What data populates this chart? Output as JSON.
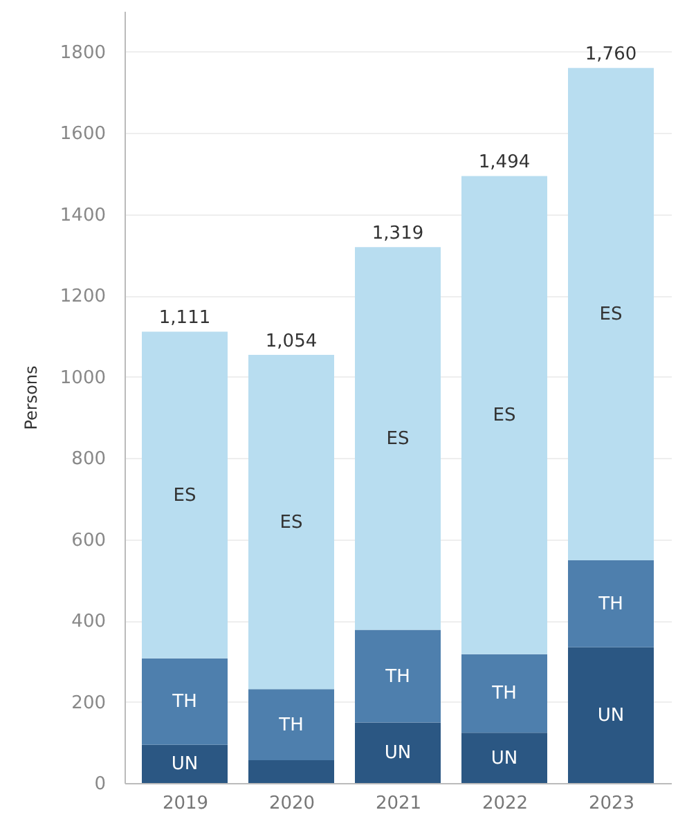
{
  "chart_data": {
    "type": "bar",
    "stacked": true,
    "ylabel": "Persons",
    "categories": [
      "2019",
      "2020",
      "2021",
      "2022",
      "2023"
    ],
    "series": [
      {
        "name": "UN",
        "color": "#2b5783",
        "values": [
          94,
          56,
          149,
          124,
          334
        ]
      },
      {
        "name": "TH",
        "color": "#4e7fad",
        "values": [
          213,
          175,
          228,
          193,
          214
        ]
      },
      {
        "name": "ES",
        "color": "#b8ddf0",
        "values": [
          804,
          823,
          942,
          1177,
          1212
        ]
      }
    ],
    "totals": [
      "1,111",
      "1,054",
      "1,319",
      "1,494",
      "1,760"
    ],
    "ylim": [
      0,
      1900
    ],
    "yticks": [
      0,
      200,
      400,
      600,
      800,
      1000,
      1200,
      1400,
      1600,
      1800
    ],
    "grid": "y",
    "legend": false
  }
}
